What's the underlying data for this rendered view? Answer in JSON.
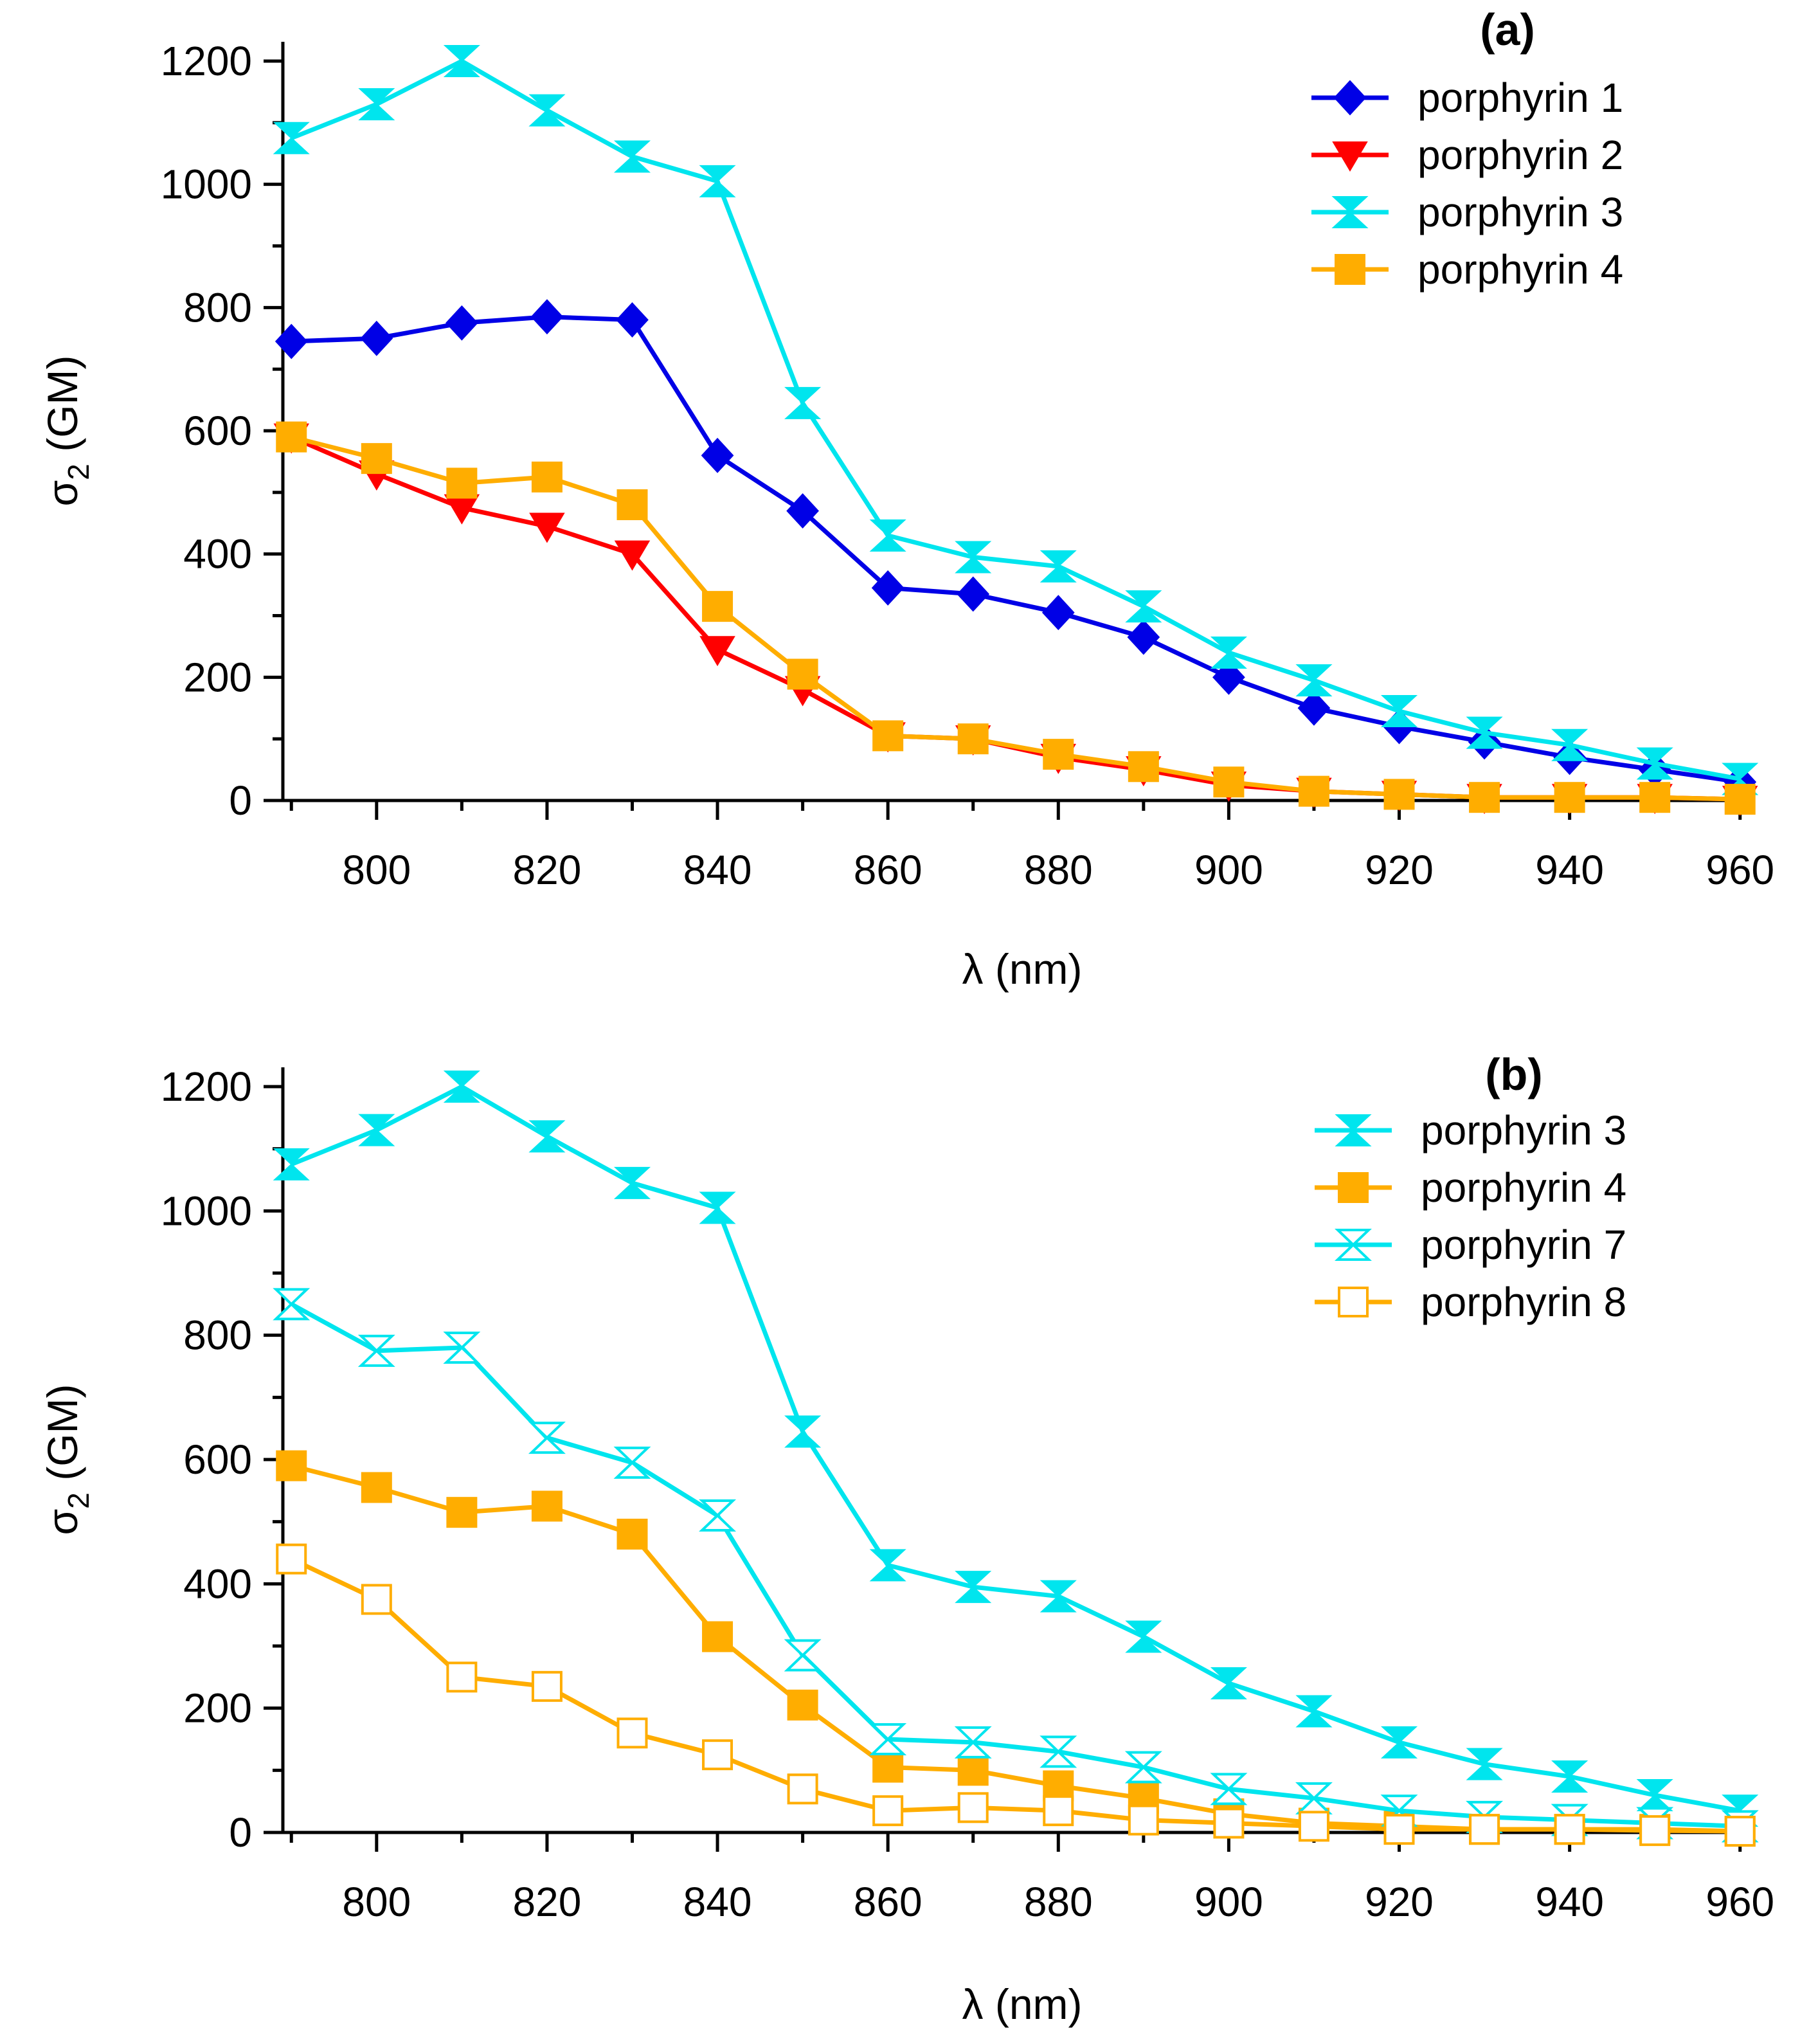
{
  "chart_data": [
    {
      "type": "line",
      "panel_label": "(a)",
      "xlabel": "λ (nm)",
      "ylabel": "σ",
      "ylabel_sub": "2",
      "ylabel_unit": "(GM)",
      "xlim": [
        789,
        961
      ],
      "ylim": [
        0,
        1220
      ],
      "xticks": [
        800,
        820,
        840,
        860,
        880,
        900,
        920,
        940,
        960
      ],
      "yticks": [
        0,
        200,
        400,
        600,
        800,
        1000,
        1200
      ],
      "legend_position": "top-right",
      "x": [
        790,
        800,
        810,
        820,
        830,
        840,
        850,
        860,
        870,
        880,
        890,
        900,
        910,
        920,
        930,
        940,
        950,
        960
      ],
      "series": [
        {
          "name": "porphyrin 1",
          "color": "#0000e6",
          "marker": "diamond",
          "values": [
            745,
            750,
            775,
            785,
            780,
            560,
            470,
            345,
            335,
            305,
            265,
            200,
            150,
            120,
            95,
            70,
            50,
            30
          ]
        },
        {
          "name": "porphyrin 2",
          "color": "#ff0000",
          "marker": "triangle-down",
          "values": [
            590,
            530,
            475,
            445,
            400,
            245,
            180,
            105,
            100,
            70,
            50,
            25,
            15,
            10,
            5,
            5,
            5,
            2
          ]
        },
        {
          "name": "porphyrin 3",
          "color": "#00e5ee",
          "marker": "hourglass",
          "values": [
            1075,
            1130,
            1200,
            1120,
            1045,
            1005,
            645,
            430,
            395,
            380,
            315,
            240,
            195,
            145,
            110,
            90,
            60,
            35
          ]
        },
        {
          "name": "porphyrin 4",
          "color": "#ffad00",
          "marker": "square",
          "values": [
            590,
            555,
            515,
            525,
            480,
            315,
            205,
            105,
            100,
            75,
            55,
            30,
            15,
            10,
            5,
            5,
            5,
            2
          ]
        }
      ]
    },
    {
      "type": "line",
      "panel_label": "(b)",
      "xlabel": "λ (nm)",
      "ylabel": "σ",
      "ylabel_sub": "2",
      "ylabel_unit": "(GM)",
      "xlim": [
        789,
        961
      ],
      "ylim": [
        0,
        1220
      ],
      "xticks": [
        800,
        820,
        840,
        860,
        880,
        900,
        920,
        940,
        960
      ],
      "yticks": [
        0,
        200,
        400,
        600,
        800,
        1000,
        1200
      ],
      "legend_position": "top-right",
      "x": [
        790,
        800,
        810,
        820,
        830,
        840,
        850,
        860,
        870,
        880,
        890,
        900,
        910,
        920,
        930,
        940,
        950,
        960
      ],
      "series": [
        {
          "name": "porphyrin 3",
          "color": "#00e5ee",
          "marker": "hourglass",
          "values": [
            1075,
            1130,
            1200,
            1120,
            1045,
            1005,
            645,
            430,
            395,
            380,
            315,
            240,
            195,
            145,
            110,
            90,
            60,
            35
          ]
        },
        {
          "name": "porphyrin 4",
          "color": "#ffad00",
          "marker": "square",
          "values": [
            590,
            555,
            515,
            525,
            480,
            315,
            205,
            105,
            100,
            75,
            55,
            30,
            15,
            10,
            5,
            5,
            5,
            2
          ]
        },
        {
          "name": "porphyrin 7",
          "color": "#00e5ee",
          "marker": "hourglass-open",
          "values": [
            850,
            775,
            780,
            635,
            595,
            510,
            285,
            150,
            145,
            130,
            105,
            70,
            55,
            35,
            25,
            20,
            15,
            10
          ]
        },
        {
          "name": "porphyrin 8",
          "color": "#ffad00",
          "marker": "square-open",
          "values": [
            440,
            375,
            250,
            235,
            160,
            125,
            70,
            35,
            40,
            35,
            20,
            15,
            10,
            5,
            5,
            5,
            3,
            2
          ]
        }
      ]
    }
  ]
}
